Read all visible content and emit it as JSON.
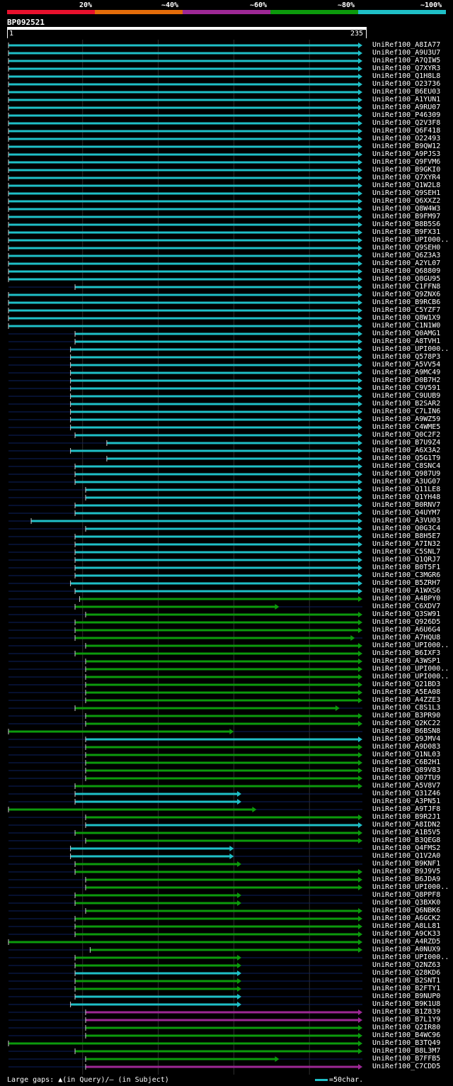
{
  "legend": {
    "labels": [
      "20%",
      "~40%",
      "~60%",
      "~80%",
      "~100%"
    ],
    "colors": [
      "#e8112d",
      "#e36c0a",
      "#9d2895",
      "#0c9a0c",
      "#1fbfc7"
    ]
  },
  "query": {
    "name": "BP092521",
    "start": "1",
    "end": "235"
  },
  "chart_data": {
    "type": "alignment-overview",
    "query_length": 235,
    "tick_positions": [
      50,
      100,
      150,
      200
    ],
    "default_span": [
      1,
      235
    ],
    "hits": [
      {
        "id": "UniRef100_A8IA77",
        "c": "cyan",
        "s": 1,
        "e": 235
      },
      {
        "id": "UniRef100_A9U3U7",
        "c": "cyan",
        "s": 1,
        "e": 235
      },
      {
        "id": "UniRef100_A7QIW5",
        "c": "cyan",
        "s": 1,
        "e": 235
      },
      {
        "id": "UniRef100_Q7XYR3",
        "c": "cyan",
        "s": 1,
        "e": 235
      },
      {
        "id": "UniRef100_Q1H8L8",
        "c": "cyan",
        "s": 1,
        "e": 235
      },
      {
        "id": "UniRef100_O23736",
        "c": "cyan",
        "s": 1,
        "e": 235
      },
      {
        "id": "UniRef100_B6EU03",
        "c": "cyan",
        "s": 1,
        "e": 235
      },
      {
        "id": "UniRef100_A1YUN1",
        "c": "cyan",
        "s": 1,
        "e": 235
      },
      {
        "id": "UniRef100_A9RU07",
        "c": "cyan",
        "s": 1,
        "e": 235
      },
      {
        "id": "UniRef100_P46309",
        "c": "cyan",
        "s": 1,
        "e": 235
      },
      {
        "id": "UniRef100_Q2V3F8",
        "c": "cyan",
        "s": 1,
        "e": 235
      },
      {
        "id": "UniRef100_Q6F418",
        "c": "cyan",
        "s": 1,
        "e": 235
      },
      {
        "id": "UniRef100_O22493",
        "c": "cyan",
        "s": 1,
        "e": 235
      },
      {
        "id": "UniRef100_B9QW12",
        "c": "cyan",
        "s": 1,
        "e": 235
      },
      {
        "id": "UniRef100_A9PJS3",
        "c": "cyan",
        "s": 1,
        "e": 235
      },
      {
        "id": "UniRef100_Q9FVM6",
        "c": "cyan",
        "s": 1,
        "e": 235
      },
      {
        "id": "UniRef100_B9GKI0",
        "c": "cyan",
        "s": 1,
        "e": 235
      },
      {
        "id": "UniRef100_Q7XYR4",
        "c": "cyan",
        "s": 1,
        "e": 235
      },
      {
        "id": "UniRef100_Q1W2L8",
        "c": "cyan",
        "s": 1,
        "e": 235
      },
      {
        "id": "UniRef100_Q9SEH1",
        "c": "cyan",
        "s": 1,
        "e": 235
      },
      {
        "id": "UniRef100_Q6XXZ2",
        "c": "cyan",
        "s": 1,
        "e": 235
      },
      {
        "id": "UniRef100_Q8W4W3",
        "c": "cyan",
        "s": 1,
        "e": 235
      },
      {
        "id": "UniRef100_B9FM97",
        "c": "cyan",
        "s": 1,
        "e": 235
      },
      {
        "id": "UniRef100_B8B5S6",
        "c": "cyan",
        "s": 1,
        "e": 235
      },
      {
        "id": "UniRef100_B9FX31",
        "c": "cyan",
        "s": 1,
        "e": 235
      },
      {
        "id": "UniRef100_UPI000..",
        "c": "cyan",
        "s": 1,
        "e": 235
      },
      {
        "id": "UniRef100_Q9SEH0",
        "c": "cyan",
        "s": 1,
        "e": 235
      },
      {
        "id": "UniRef100_Q6Z3A3",
        "c": "cyan",
        "s": 1,
        "e": 235
      },
      {
        "id": "UniRef100_A2YL07",
        "c": "cyan",
        "s": 1,
        "e": 235
      },
      {
        "id": "UniRef100_Q68809",
        "c": "cyan",
        "s": 1,
        "e": 235
      },
      {
        "id": "UniRef100_Q8GU95",
        "c": "cyan",
        "s": 1,
        "e": 235
      },
      {
        "id": "UniRef100_C1FFN8",
        "c": "cyan",
        "s": 45,
        "e": 235
      },
      {
        "id": "UniRef100_Q9ZNX6",
        "c": "cyan",
        "s": 1,
        "e": 235
      },
      {
        "id": "UniRef100_B9RCB6",
        "c": "cyan",
        "s": 1,
        "e": 235
      },
      {
        "id": "UniRef100_C5YZF7",
        "c": "cyan",
        "s": 1,
        "e": 235
      },
      {
        "id": "UniRef100_Q8W1X9",
        "c": "cyan",
        "s": 1,
        "e": 235
      },
      {
        "id": "UniRef100_C1N1W0",
        "c": "cyan",
        "s": 1,
        "e": 235
      },
      {
        "id": "UniRef100_Q0AMG1",
        "c": "cyan",
        "s": 45,
        "e": 235
      },
      {
        "id": "UniRef100_A8TVH1",
        "c": "cyan",
        "s": 45,
        "e": 235
      },
      {
        "id": "UniRef100_UPI000..",
        "c": "cyan",
        "s": 42,
        "e": 235
      },
      {
        "id": "UniRef100_Q578P3",
        "c": "cyan",
        "s": 42,
        "e": 235
      },
      {
        "id": "UniRef100_A5VV54",
        "c": "cyan",
        "s": 42,
        "e": 235
      },
      {
        "id": "UniRef100_A9MC49",
        "c": "cyan",
        "s": 42,
        "e": 235
      },
      {
        "id": "UniRef100_D0B7H2",
        "c": "cyan",
        "s": 42,
        "e": 235
      },
      {
        "id": "UniRef100_C9V591",
        "c": "cyan",
        "s": 42,
        "e": 235
      },
      {
        "id": "UniRef100_C9UUB9",
        "c": "cyan",
        "s": 42,
        "e": 235
      },
      {
        "id": "UniRef100_B2SAR2",
        "c": "cyan",
        "s": 42,
        "e": 235
      },
      {
        "id": "UniRef100_C7LIN6",
        "c": "cyan",
        "s": 42,
        "e": 235
      },
      {
        "id": "UniRef100_A9WZ59",
        "c": "cyan",
        "s": 42,
        "e": 235
      },
      {
        "id": "UniRef100_C4WME5",
        "c": "cyan",
        "s": 42,
        "e": 235
      },
      {
        "id": "UniRef100_Q0C2F2",
        "c": "cyan",
        "s": 45,
        "e": 235
      },
      {
        "id": "UniRef100_B7U9Z4",
        "c": "cyan",
        "s": 66,
        "e": 235
      },
      {
        "id": "UniRef100_A6X3A2",
        "c": "cyan",
        "s": 42,
        "e": 235
      },
      {
        "id": "UniRef100_Q5G1T9",
        "c": "cyan",
        "s": 66,
        "e": 235
      },
      {
        "id": "UniRef100_C8SNC4",
        "c": "cyan",
        "s": 45,
        "e": 235
      },
      {
        "id": "UniRef100_Q987U9",
        "c": "cyan",
        "s": 45,
        "e": 235
      },
      {
        "id": "UniRef100_A3UG07",
        "c": "cyan",
        "s": 45,
        "e": 235
      },
      {
        "id": "UniRef100_Q11LE8",
        "c": "cyan",
        "s": 52,
        "e": 235
      },
      {
        "id": "UniRef100_Q1YH48",
        "c": "cyan",
        "s": 52,
        "e": 235
      },
      {
        "id": "UniRef100_B0RNV7",
        "c": "cyan",
        "s": 45,
        "e": 235
      },
      {
        "id": "UniRef100_Q4UYM7",
        "c": "cyan",
        "s": 45,
        "e": 235
      },
      {
        "id": "UniRef100_A3VU03",
        "c": "cyan",
        "s": 16,
        "e": 235
      },
      {
        "id": "UniRef100_Q0G3C4",
        "c": "cyan",
        "s": 52,
        "e": 235
      },
      {
        "id": "UniRef100_B8H5E7",
        "c": "cyan",
        "s": 45,
        "e": 235
      },
      {
        "id": "UniRef100_A7IN32",
        "c": "cyan",
        "s": 45,
        "e": 235
      },
      {
        "id": "UniRef100_C5SNL7",
        "c": "cyan",
        "s": 45,
        "e": 235
      },
      {
        "id": "UniRef100_Q1QRJ7",
        "c": "cyan",
        "s": 45,
        "e": 235
      },
      {
        "id": "UniRef100_B0T5F1",
        "c": "cyan",
        "s": 45,
        "e": 235
      },
      {
        "id": "UniRef100_C3MGR6",
        "c": "cyan",
        "s": 45,
        "e": 235
      },
      {
        "id": "UniRef100_B5ZRH7",
        "c": "cyan",
        "s": 42,
        "e": 235
      },
      {
        "id": "UniRef100_A1WXS6",
        "c": "cyan",
        "s": 45,
        "e": 235
      },
      {
        "id": "UniRef100_A4BPY0",
        "c": "green",
        "s": 48,
        "e": 235
      },
      {
        "id": "UniRef100_C6XDV7",
        "c": "green",
        "s": 45,
        "e": 180
      },
      {
        "id": "UniRef100_Q3SW91",
        "c": "green",
        "s": 52,
        "e": 235
      },
      {
        "id": "UniRef100_Q926D5",
        "c": "green",
        "s": 45,
        "e": 235
      },
      {
        "id": "UniRef100_A6U6G4",
        "c": "green",
        "s": 45,
        "e": 235
      },
      {
        "id": "UniRef100_A7HQU8",
        "c": "green",
        "s": 45,
        "e": 230
      },
      {
        "id": "UniRef100_UPI000..",
        "c": "green",
        "s": 52,
        "e": 235
      },
      {
        "id": "UniRef100_B6IXF3",
        "c": "green",
        "s": 45,
        "e": 235
      },
      {
        "id": "UniRef100_A3WSP1",
        "c": "green",
        "s": 52,
        "e": 235
      },
      {
        "id": "UniRef100_UPI000..",
        "c": "green",
        "s": 52,
        "e": 235
      },
      {
        "id": "UniRef100_UPI000..",
        "c": "green",
        "s": 52,
        "e": 235
      },
      {
        "id": "UniRef100_Q21BD3",
        "c": "green",
        "s": 52,
        "e": 235
      },
      {
        "id": "UniRef100_A5EA08",
        "c": "green",
        "s": 52,
        "e": 235
      },
      {
        "id": "UniRef100_A4ZZE3",
        "c": "green",
        "s": 52,
        "e": 235
      },
      {
        "id": "UniRef100_C8S1L3",
        "c": "green",
        "s": 45,
        "e": 220
      },
      {
        "id": "UniRef100_B3PR90",
        "c": "green",
        "s": 52,
        "e": 235
      },
      {
        "id": "UniRef100_Q2KC22",
        "c": "green",
        "s": 52,
        "e": 235
      },
      {
        "id": "UniRef100_B6BSN8",
        "c": "green",
        "s": 1,
        "e": 150
      },
      {
        "id": "UniRef100_Q9JMV4",
        "c": "cyan",
        "s": 52,
        "e": 235
      },
      {
        "id": "UniRef100_A9D083",
        "c": "green",
        "s": 52,
        "e": 235
      },
      {
        "id": "UniRef100_Q1NL03",
        "c": "green",
        "s": 52,
        "e": 235
      },
      {
        "id": "UniRef100_C6B2H1",
        "c": "green",
        "s": 52,
        "e": 235
      },
      {
        "id": "UniRef100_Q89V83",
        "c": "green",
        "s": 52,
        "e": 235
      },
      {
        "id": "UniRef100_Q07TU9",
        "c": "green",
        "s": 52,
        "e": 235
      },
      {
        "id": "UniRef100_A5V8V7",
        "c": "green",
        "s": 45,
        "e": 235
      },
      {
        "id": "UniRef100_Q31Z46",
        "c": "cyan",
        "s": 45,
        "e": 155
      },
      {
        "id": "UniRef100_A3PN51",
        "c": "cyan",
        "s": 45,
        "e": 155
      },
      {
        "id": "UniRef100_A9TJF8",
        "c": "green",
        "s": 1,
        "e": 165
      },
      {
        "id": "UniRef100_B9R2J1",
        "c": "green",
        "s": 52,
        "e": 235
      },
      {
        "id": "UniRef100_A8IDN2",
        "c": "cyan",
        "s": 52,
        "e": 235
      },
      {
        "id": "UniRef100_A1B5V5",
        "c": "green",
        "s": 45,
        "e": 235
      },
      {
        "id": "UniRef100_B3QEG8",
        "c": "green",
        "s": 52,
        "e": 235
      },
      {
        "id": "UniRef100_Q4FMS2",
        "c": "cyan",
        "s": 42,
        "e": 150
      },
      {
        "id": "UniRef100_Q1V2A0",
        "c": "cyan",
        "s": 42,
        "e": 150
      },
      {
        "id": "UniRef100_B9KNF1",
        "c": "green",
        "s": 45,
        "e": 155
      },
      {
        "id": "UniRef100_B9J9V5",
        "c": "green",
        "s": 45,
        "e": 235
      },
      {
        "id": "UniRef100_B6JDA9",
        "c": "green",
        "s": 52,
        "e": 235
      },
      {
        "id": "UniRef100_UPI000..",
        "c": "green",
        "s": 52,
        "e": 235
      },
      {
        "id": "UniRef100_Q8PPF8",
        "c": "green",
        "s": 45,
        "e": 155
      },
      {
        "id": "UniRef100_Q3BXK0",
        "c": "green",
        "s": 45,
        "e": 155
      },
      {
        "id": "UniRef100_Q6NBK6",
        "c": "green",
        "s": 52,
        "e": 235
      },
      {
        "id": "UniRef100_A6GCK2",
        "c": "green",
        "s": 45,
        "e": 235
      },
      {
        "id": "UniRef100_A8LL81",
        "c": "green",
        "s": 45,
        "e": 235
      },
      {
        "id": "UniRef100_A9CK33",
        "c": "green",
        "s": 45,
        "e": 235
      },
      {
        "id": "UniRef100_A4RZD5",
        "c": "green",
        "s": 1,
        "e": 235
      },
      {
        "id": "UniRef100_A0NUX9",
        "c": "green",
        "s": 55,
        "e": 235
      },
      {
        "id": "UniRef100_UPI000..",
        "c": "green",
        "s": 45,
        "e": 155
      },
      {
        "id": "UniRef100_Q2NZ63",
        "c": "green",
        "s": 45,
        "e": 155
      },
      {
        "id": "UniRef100_Q28KD6",
        "c": "cyan",
        "s": 45,
        "e": 155
      },
      {
        "id": "UniRef100_B2SNT1",
        "c": "green",
        "s": 45,
        "e": 155
      },
      {
        "id": "UniRef100_B2FTY1",
        "c": "green",
        "s": 45,
        "e": 155
      },
      {
        "id": "UniRef100_B9NUP0",
        "c": "cyan",
        "s": 45,
        "e": 155
      },
      {
        "id": "UniRef100_B9K1U8",
        "c": "cyan",
        "s": 42,
        "e": 155
      },
      {
        "id": "UniRef100_B1Z839",
        "c": "purple",
        "s": 52,
        "e": 235
      },
      {
        "id": "UniRef100_B7L1Y9",
        "c": "purple",
        "s": 52,
        "e": 235
      },
      {
        "id": "UniRef100_Q2IR80",
        "c": "green",
        "s": 52,
        "e": 235
      },
      {
        "id": "UniRef100_B4WC96",
        "c": "green",
        "s": 52,
        "e": 235
      },
      {
        "id": "UniRef100_B3TQ49",
        "c": "green",
        "s": 1,
        "e": 235
      },
      {
        "id": "UniRef100_B8L3M7",
        "c": "green",
        "s": 45,
        "e": 235
      },
      {
        "id": "UniRef100_B7FFB5",
        "c": "green",
        "s": 52,
        "e": 180
      },
      {
        "id": "UniRef100_C7CDD5",
        "c": "purple",
        "s": 52,
        "e": 235
      }
    ]
  },
  "footer": {
    "gaps_text": "Large gaps: ▲(in Query)/— (in Subject)",
    "scale_text": "=50char."
  }
}
